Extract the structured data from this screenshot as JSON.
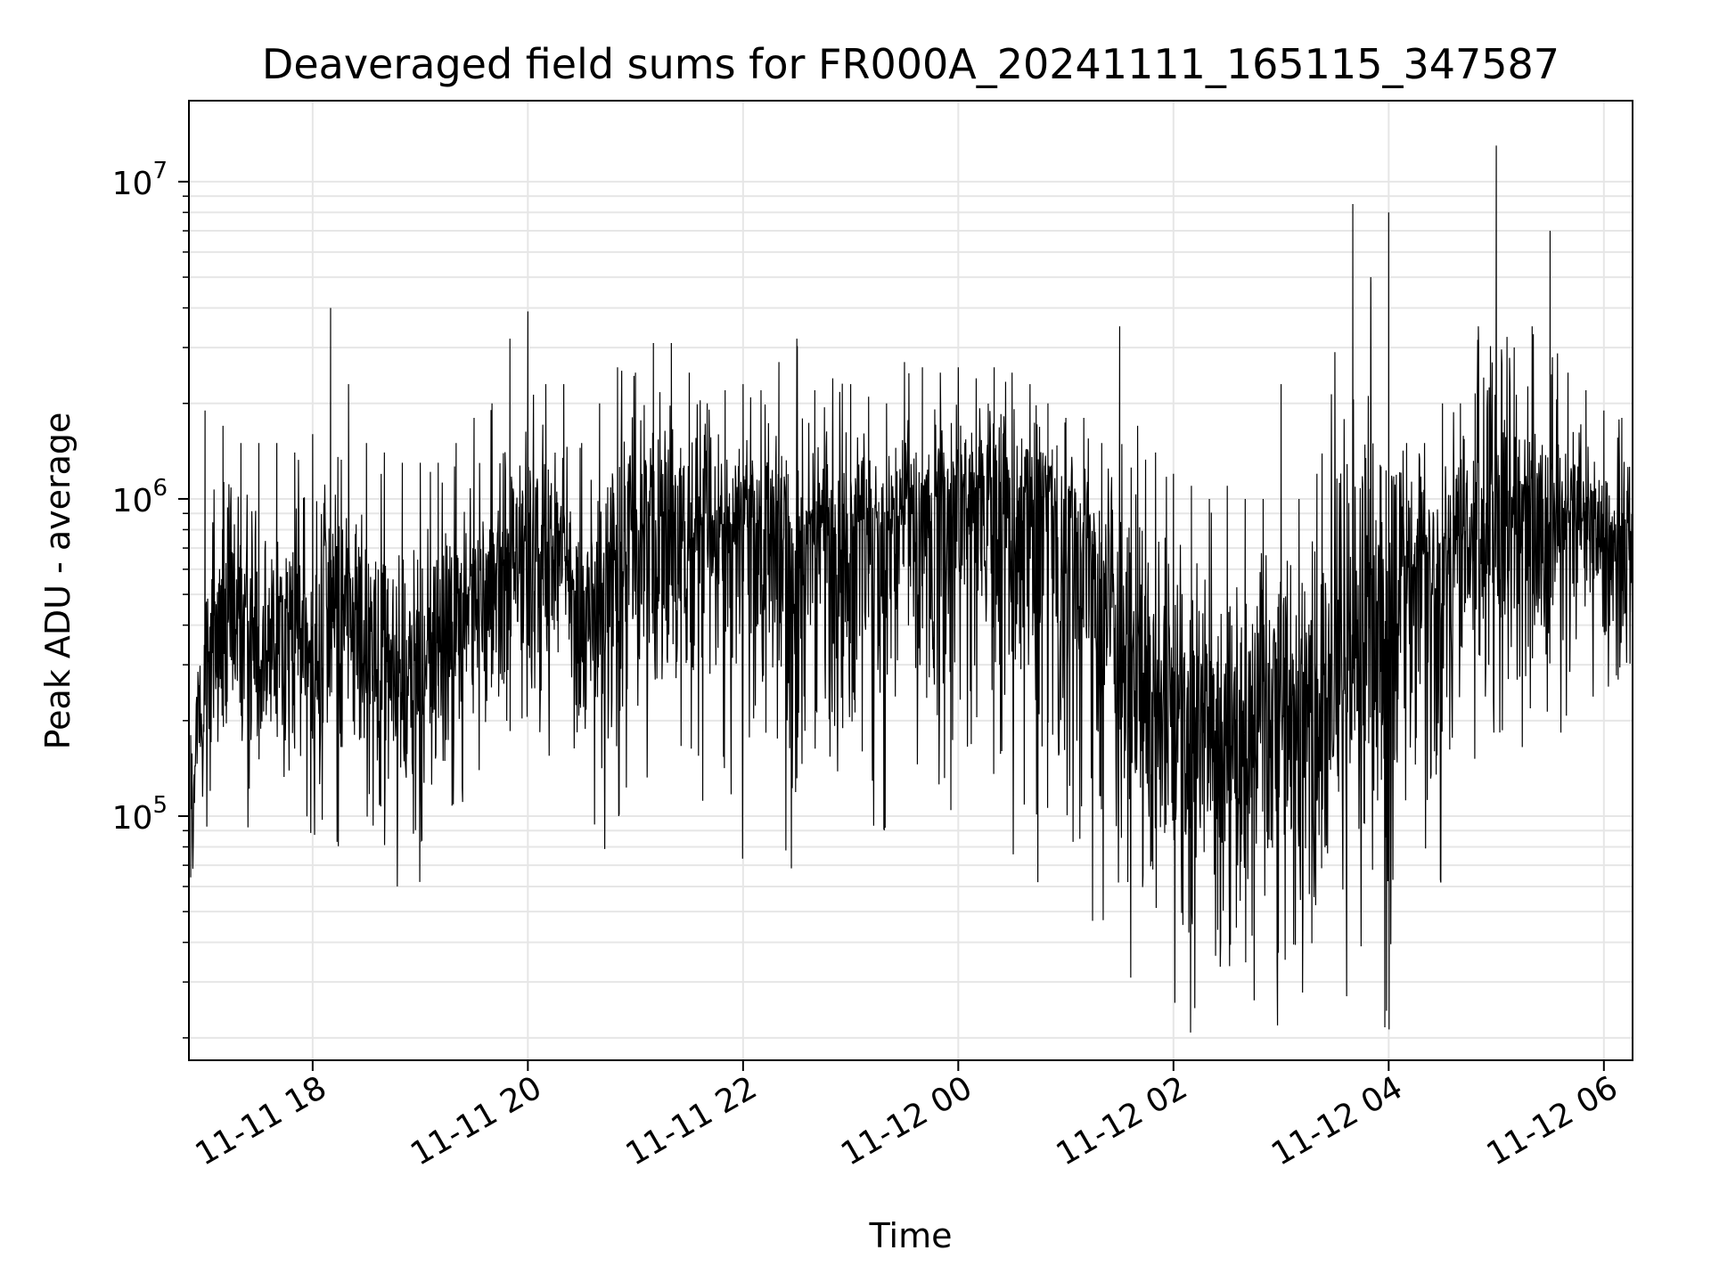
{
  "chart_data": {
    "type": "line",
    "title": "Deaveraged field sums for FR000A_20241111_165115_347587",
    "xlabel": "Time",
    "ylabel": "Peak ADU - average",
    "yscale": "log",
    "ylim": [
      17000,
      18000000
    ],
    "xlim": [
      "2024-11-11 16:51",
      "2024-11-12 06:16"
    ],
    "grid": true,
    "line_color": "#000000",
    "grid_color": "#e6e6e6",
    "x_ticks": [
      {
        "t": "2024-11-11 18:00",
        "label": "11-11 18"
      },
      {
        "t": "2024-11-11 20:00",
        "label": "11-11 20"
      },
      {
        "t": "2024-11-11 22:00",
        "label": "11-11 22"
      },
      {
        "t": "2024-11-12 00:00",
        "label": "11-12 00"
      },
      {
        "t": "2024-11-12 02:00",
        "label": "11-12 02"
      },
      {
        "t": "2024-11-12 04:00",
        "label": "11-12 04"
      },
      {
        "t": "2024-11-12 06:00",
        "label": "11-12 06"
      }
    ],
    "y_ticks": [
      {
        "value": 100000,
        "base": "10",
        "exp": "5"
      },
      {
        "value": 1000000,
        "base": "10",
        "exp": "6"
      },
      {
        "value": 10000000,
        "base": "10",
        "exp": "7"
      }
    ],
    "series": [
      {
        "x": [
          "2024-11-11 16:52",
          "2024-11-11 17:00",
          "2024-11-11 17:10",
          "2024-11-11 17:20",
          "2024-11-11 17:30",
          "2024-11-11 17:40",
          "2024-11-11 17:50",
          "2024-11-11 18:00",
          "2024-11-11 18:10",
          "2024-11-11 18:20",
          "2024-11-11 18:30",
          "2024-11-11 18:40",
          "2024-11-11 18:50",
          "2024-11-11 19:00",
          "2024-11-11 19:10",
          "2024-11-11 19:20",
          "2024-11-11 19:30",
          "2024-11-11 19:40",
          "2024-11-11 19:50",
          "2024-11-11 20:00",
          "2024-11-11 20:10",
          "2024-11-11 20:20",
          "2024-11-11 20:30",
          "2024-11-11 20:40",
          "2024-11-11 20:50",
          "2024-11-11 21:00",
          "2024-11-11 21:10",
          "2024-11-11 21:20",
          "2024-11-11 21:30",
          "2024-11-11 21:40",
          "2024-11-11 21:50",
          "2024-11-11 22:00",
          "2024-11-11 22:10",
          "2024-11-11 22:20",
          "2024-11-11 22:30",
          "2024-11-11 22:40",
          "2024-11-11 22:50",
          "2024-11-11 23:00",
          "2024-11-11 23:10",
          "2024-11-11 23:20",
          "2024-11-11 23:30",
          "2024-11-11 23:40",
          "2024-11-11 23:50",
          "2024-11-12 00:00",
          "2024-11-12 00:10",
          "2024-11-12 00:20",
          "2024-11-12 00:30",
          "2024-11-12 00:40",
          "2024-11-12 00:50",
          "2024-11-12 01:00",
          "2024-11-12 01:10",
          "2024-11-12 01:20",
          "2024-11-12 01:30",
          "2024-11-12 01:40",
          "2024-11-12 01:50",
          "2024-11-12 02:00",
          "2024-11-12 02:10",
          "2024-11-12 02:20",
          "2024-11-12 02:30",
          "2024-11-12 02:40",
          "2024-11-12 02:50",
          "2024-11-12 03:00",
          "2024-11-12 03:10",
          "2024-11-12 03:20",
          "2024-11-12 03:30",
          "2024-11-12 03:40",
          "2024-11-12 03:50",
          "2024-11-12 04:00",
          "2024-11-12 04:10",
          "2024-11-12 04:20",
          "2024-11-12 04:30",
          "2024-11-12 04:40",
          "2024-11-12 04:50",
          "2024-11-12 05:00",
          "2024-11-12 05:10",
          "2024-11-12 05:20",
          "2024-11-12 05:30",
          "2024-11-12 05:40",
          "2024-11-12 05:50",
          "2024-11-12 06:00",
          "2024-11-12 06:10",
          "2024-11-12 06:16"
        ],
        "median": [
          90000,
          300000,
          400000,
          450000,
          420000,
          400000,
          380000,
          350000,
          400000,
          420000,
          380000,
          300000,
          280000,
          300000,
          350000,
          420000,
          500000,
          550000,
          600000,
          750000,
          800000,
          700000,
          350000,
          500000,
          650000,
          800000,
          850000,
          900000,
          850000,
          800000,
          750000,
          800000,
          850000,
          700000,
          650000,
          700000,
          750000,
          800000,
          850000,
          800000,
          850000,
          900000,
          950000,
          1000000,
          1050000,
          1100000,
          1000000,
          950000,
          900000,
          850000,
          750000,
          600000,
          400000,
          250000,
          180000,
          200000,
          220000,
          200000,
          180000,
          200000,
          250000,
          280000,
          250000,
          230000,
          250000,
          300000,
          350000,
          450000,
          550000,
          650000,
          700000,
          750000,
          800000,
          900000,
          850000,
          800000,
          850000,
          900000,
          800000,
          700000,
          750000,
          700000
        ],
        "high": [
          180000,
          1900000,
          1700000,
          1500000,
          1500000,
          1500000,
          1400000,
          1600000,
          4000000,
          2300000,
          1500000,
          1400000,
          1300000,
          1300000,
          1300000,
          1500000,
          1800000,
          2000000,
          3200000,
          3900000,
          2300000,
          2300000,
          1500000,
          2000000,
          2600000,
          2500000,
          3100000,
          3100000,
          2500000,
          2000000,
          2200000,
          2300000,
          2200000,
          2700000,
          3200000,
          2200000,
          2400000,
          2300000,
          2100000,
          2000000,
          2700000,
          2600000,
          2500000,
          2600000,
          2400000,
          2600000,
          2500000,
          2300000,
          2000000,
          1800000,
          1800000,
          1500000,
          3500000,
          1700000,
          1400000,
          1200000,
          1100000,
          1000000,
          1100000,
          1000000,
          1000000,
          2300000,
          1000000,
          1200000,
          2900000,
          8500000,
          5000000,
          8000000,
          1500000,
          1500000,
          2000000,
          2000000,
          3500000,
          13000000,
          3000000,
          3500000,
          7000000,
          2500000,
          2200000,
          1900000,
          1800000,
          1500000
        ],
        "low": [
          45000,
          80000,
          100000,
          80000,
          100000,
          110000,
          90000,
          60000,
          75000,
          85000,
          90000,
          80000,
          50000,
          60000,
          70000,
          80000,
          75000,
          90000,
          80000,
          85000,
          100000,
          120000,
          130000,
          65000,
          95000,
          120000,
          130000,
          110000,
          110000,
          95000,
          75000,
          70000,
          65000,
          75000,
          60000,
          65000,
          70000,
          75000,
          80000,
          85000,
          100000,
          90000,
          75000,
          100000,
          110000,
          80000,
          70000,
          60000,
          55000,
          45000,
          50000,
          40000,
          32000,
          25000,
          21000,
          22000,
          20000,
          27000,
          19000,
          21000,
          24000,
          20000,
          24000,
          20000,
          25000,
          22000,
          24000,
          20000,
          35000,
          40000,
          60000,
          110000,
          150000,
          120000,
          140000,
          160000,
          150000,
          180000,
          200000,
          150000,
          130000,
          200000
        ]
      }
    ]
  }
}
